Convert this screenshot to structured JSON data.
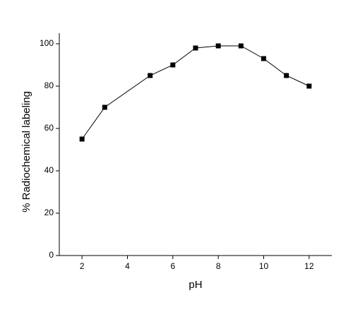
{
  "chart_data": {
    "type": "line",
    "x_label": "pH",
    "y_label": "% Radiochemical labeling",
    "x": [
      2,
      3,
      5,
      6,
      7,
      8,
      9,
      10,
      11,
      12
    ],
    "series": [
      {
        "name": "Radiochemical labeling",
        "color": "#000000",
        "values": [
          55,
          70,
          85,
          90,
          98,
          99,
          99,
          93,
          85,
          80
        ]
      }
    ],
    "xlim": [
      1,
      13
    ],
    "xticks": [
      2,
      4,
      6,
      8,
      10,
      12
    ],
    "ylim": [
      0,
      105
    ],
    "yticks": [
      0,
      20,
      40,
      60,
      80,
      100
    ],
    "grid": false,
    "legend": false
  }
}
